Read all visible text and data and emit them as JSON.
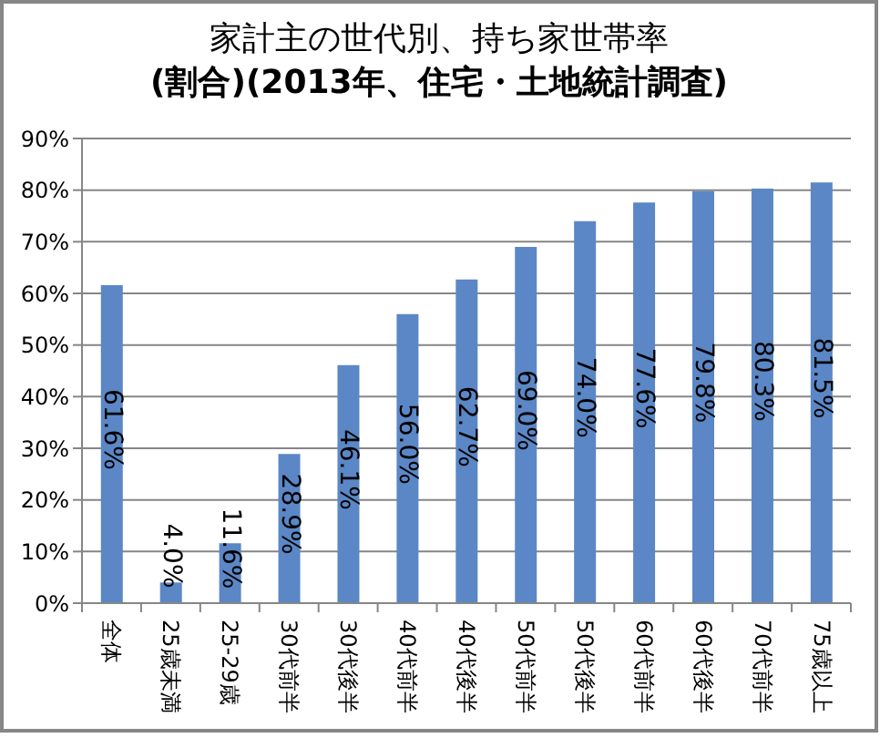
{
  "chart_data": {
    "type": "bar",
    "title": "家計主の世代別、持ち家世帯率",
    "subtitle": "(割合)(2013年、住宅・土地統計調査)",
    "categories": [
      "全体",
      "25歳未満",
      "25-29歳",
      "30代前半",
      "30代後半",
      "40代前半",
      "40代後半",
      "50代前半",
      "50代後半",
      "60代前半",
      "60代後半",
      "70代前半",
      "75歳以上"
    ],
    "values": [
      61.6,
      4.0,
      11.6,
      28.9,
      46.1,
      56.0,
      62.7,
      69.0,
      74.0,
      77.6,
      79.8,
      80.3,
      81.5
    ],
    "value_labels": [
      "61.6%",
      "4.0%",
      "11.6%",
      "28.9%",
      "46.1%",
      "56.0%",
      "62.7%",
      "69.0%",
      "74.0%",
      "77.6%",
      "79.8%",
      "80.3%",
      "81.5%"
    ],
    "color": "#5b87c6",
    "ylim": [
      0,
      90
    ],
    "yticks": [
      {
        "value": 0,
        "label": "0%"
      },
      {
        "value": 10,
        "label": "10%"
      },
      {
        "value": 20,
        "label": "20%"
      },
      {
        "value": 30,
        "label": "30%"
      },
      {
        "value": 40,
        "label": "40%"
      },
      {
        "value": 50,
        "label": "50%"
      },
      {
        "value": 60,
        "label": "60%"
      },
      {
        "value": 70,
        "label": "70%"
      },
      {
        "value": 80,
        "label": "80%"
      },
      {
        "value": 90,
        "label": "90%"
      }
    ],
    "grid": "y"
  }
}
